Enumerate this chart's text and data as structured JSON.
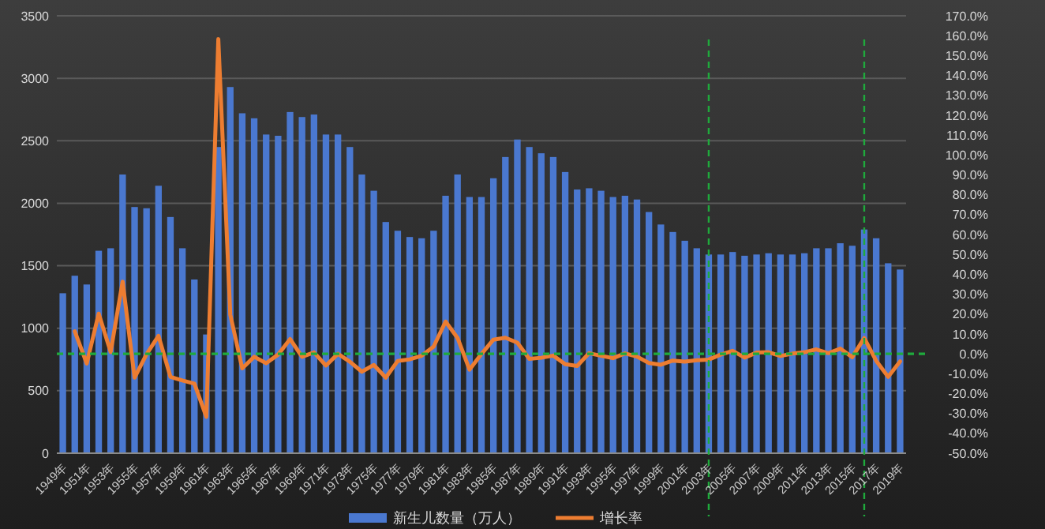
{
  "chart_data": {
    "type": "bar",
    "x": [
      1949,
      1950,
      1951,
      1952,
      1953,
      1954,
      1955,
      1956,
      1957,
      1958,
      1959,
      1960,
      1961,
      1962,
      1963,
      1964,
      1965,
      1966,
      1967,
      1968,
      1969,
      1970,
      1971,
      1972,
      1973,
      1974,
      1975,
      1976,
      1977,
      1978,
      1979,
      1980,
      1981,
      1982,
      1983,
      1984,
      1985,
      1986,
      1987,
      1988,
      1989,
      1990,
      1991,
      1992,
      1993,
      1994,
      1995,
      1996,
      1997,
      1998,
      1999,
      2000,
      2001,
      2002,
      2003,
      2004,
      2005,
      2006,
      2007,
      2008,
      2009,
      2010,
      2011,
      2012,
      2013,
      2014,
      2015,
      2016,
      2017,
      2018,
      2019
    ],
    "xlim": [
      1948.5,
      2019.5
    ],
    "xticks": [
      {
        "value": 1949,
        "label": "1949年"
      },
      {
        "value": 1951,
        "label": "1951年"
      },
      {
        "value": 1953,
        "label": "1953年"
      },
      {
        "value": 1955,
        "label": "1955年"
      },
      {
        "value": 1957,
        "label": "1957年"
      },
      {
        "value": 1959,
        "label": "1959年"
      },
      {
        "value": 1961,
        "label": "1961年"
      },
      {
        "value": 1963,
        "label": "1963年"
      },
      {
        "value": 1965,
        "label": "1965年"
      },
      {
        "value": 1967,
        "label": "1967年"
      },
      {
        "value": 1969,
        "label": "1969年"
      },
      {
        "value": 1971,
        "label": "1971年"
      },
      {
        "value": 1973,
        "label": "1973年"
      },
      {
        "value": 1975,
        "label": "1975年"
      },
      {
        "value": 1977,
        "label": "1977年"
      },
      {
        "value": 1979,
        "label": "1979年"
      },
      {
        "value": 1981,
        "label": "1981年"
      },
      {
        "value": 1983,
        "label": "1983年"
      },
      {
        "value": 1985,
        "label": "1985年"
      },
      {
        "value": 1987,
        "label": "1987年"
      },
      {
        "value": 1989,
        "label": "1989年"
      },
      {
        "value": 1991,
        "label": "1991年"
      },
      {
        "value": 1993,
        "label": "1993年"
      },
      {
        "value": 1995,
        "label": "1995年"
      },
      {
        "value": 1997,
        "label": "1997年"
      },
      {
        "value": 1999,
        "label": "1999年"
      },
      {
        "value": 2001,
        "label": "2001年"
      },
      {
        "value": 2003,
        "label": "2003年"
      },
      {
        "value": 2005,
        "label": "2005年"
      },
      {
        "value": 2007,
        "label": "2007年"
      },
      {
        "value": 2009,
        "label": "2009年"
      },
      {
        "value": 2011,
        "label": "2011年"
      },
      {
        "value": 2013,
        "label": "2013年"
      },
      {
        "value": 2015,
        "label": "2015年"
      },
      {
        "value": 2017,
        "label": "2017年"
      },
      {
        "value": 2019,
        "label": "2019年"
      }
    ],
    "ylim": [
      0,
      3500
    ],
    "yticks": [
      0,
      500,
      1000,
      1500,
      2000,
      2500,
      3000,
      3500
    ],
    "y2lim": [
      -50,
      170
    ],
    "y2ticks": [
      {
        "value": -50,
        "label": "-50.0%"
      },
      {
        "value": -40,
        "label": "-40.0%"
      },
      {
        "value": -30,
        "label": "-30.0%"
      },
      {
        "value": -20,
        "label": "-20.0%"
      },
      {
        "value": -10,
        "label": "-10.0%"
      },
      {
        "value": 0,
        "label": "0.0%"
      },
      {
        "value": 10,
        "label": "10.0%"
      },
      {
        "value": 20,
        "label": "20.0%"
      },
      {
        "value": 30,
        "label": "30.0%"
      },
      {
        "value": 40,
        "label": "40.0%"
      },
      {
        "value": 50,
        "label": "50.0%"
      },
      {
        "value": 60,
        "label": "60.0%"
      },
      {
        "value": 70,
        "label": "70.0%"
      },
      {
        "value": 80,
        "label": "80.0%"
      },
      {
        "value": 90,
        "label": "90.0%"
      },
      {
        "value": 100,
        "label": "100.0%"
      },
      {
        "value": 110,
        "label": "110.0%"
      },
      {
        "value": 120,
        "label": "120.0%"
      },
      {
        "value": 130,
        "label": "130.0%"
      },
      {
        "value": 140,
        "label": "140.0%"
      },
      {
        "value": 150,
        "label": "150.0%"
      },
      {
        "value": 160,
        "label": "160.0%"
      },
      {
        "value": 170,
        "label": "170.0%"
      }
    ],
    "grid": "y",
    "legend": "bottom",
    "series": [
      {
        "name": "新生儿数量（万人）",
        "color": "#4a78d0",
        "values": [
          1280,
          1420,
          1350,
          1620,
          1640,
          2230,
          1970,
          1960,
          2140,
          1890,
          1640,
          1390,
          950,
          2450,
          2930,
          2720,
          2680,
          2550,
          2540,
          2730,
          2690,
          2710,
          2550,
          2550,
          2450,
          2230,
          2100,
          1850,
          1780,
          1730,
          1720,
          1780,
          2060,
          2230,
          2050,
          2050,
          2200,
          2370,
          2510,
          2450,
          2400,
          2370,
          2250,
          2110,
          2120,
          2100,
          2050,
          2060,
          2030,
          1930,
          1830,
          1770,
          1700,
          1640,
          1590,
          1590,
          1610,
          1580,
          1590,
          1600,
          1590,
          1590,
          1600,
          1640,
          1640,
          1680,
          1660,
          1790,
          1720,
          1520,
          1470
        ]
      },
      {
        "name": "增长率",
        "type": "line",
        "axis": "y2",
        "color": "#ed7d31",
        "values": [
          null,
          11.3,
          -4.9,
          20.2,
          0.9,
          36.3,
          -12.0,
          -0.2,
          9.0,
          -11.6,
          -13.4,
          -15.0,
          -31.7,
          158.3,
          19.7,
          -7.3,
          -1.5,
          -4.7,
          -0.4,
          7.4,
          -1.5,
          0.7,
          -5.9,
          0.0,
          -4.0,
          -9.0,
          -5.6,
          -12.0,
          -3.6,
          -2.8,
          -1.0,
          3.6,
          16.2,
          8.0,
          -8.0,
          -0.1,
          7.1,
          8.1,
          5.6,
          -2.5,
          -2.0,
          -0.9,
          -5.2,
          -6.1,
          0.3,
          -1.0,
          -2.2,
          0.2,
          -1.4,
          -4.6,
          -5.5,
          -3.4,
          -3.9,
          -3.2,
          -2.9,
          -0.4,
          1.5,
          -1.9,
          0.6,
          0.8,
          -1.1,
          0.1,
          0.8,
          2.2,
          0.3,
          2.6,
          -1.7,
          7.9,
          -3.5,
          -11.6,
          -3.8
        ]
      }
    ],
    "ref_lines": [
      {
        "axis": "y2",
        "value": 0,
        "color": "#1faa3c",
        "line_style": "dashed"
      },
      {
        "axis": "x",
        "value": 2003,
        "color": "#1faa3c",
        "line_style": "dashed"
      },
      {
        "axis": "x",
        "value": 2016,
        "color": "#1faa3c",
        "line_style": "dashed"
      }
    ]
  }
}
